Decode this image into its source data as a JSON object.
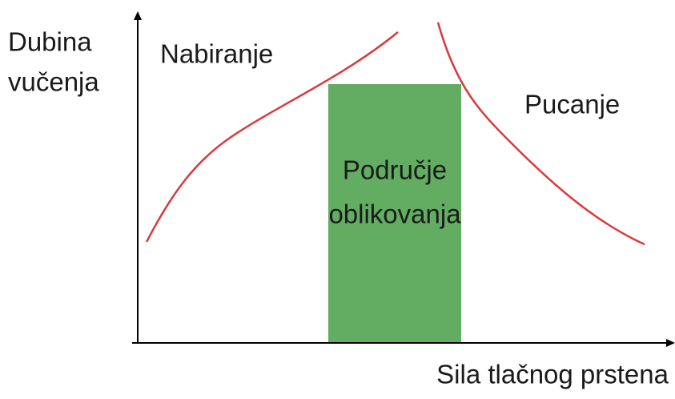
{
  "y_axis_label": {
    "lines": [
      "Dubina",
      "vučenja"
    ]
  },
  "x_axis_label": "Sila tlačnog prstena",
  "regions": [
    {
      "label": {
        "lines": [
          "Nabiranje"
        ]
      }
    },
    {
      "label": {
        "lines": [
          "Pucanje"
        ]
      }
    },
    {
      "label": {
        "lines": [
          "Područje",
          "oblikovanja"
        ]
      }
    }
  ]
}
